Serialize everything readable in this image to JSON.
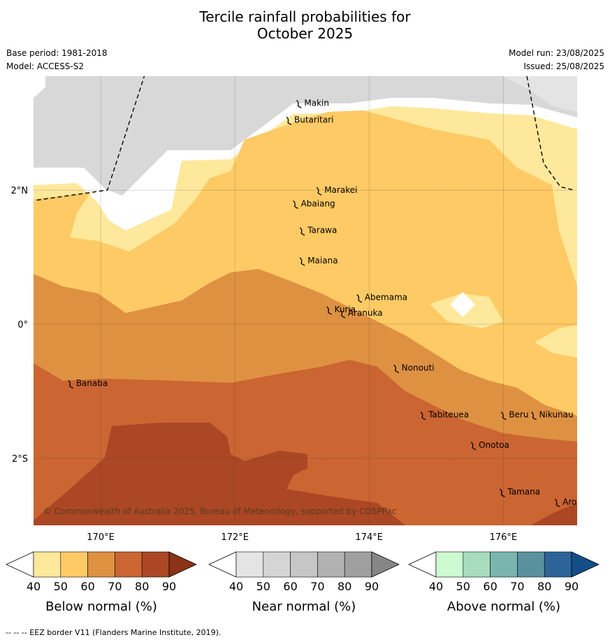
{
  "title": {
    "line1": "Tercile rainfall probabilities for",
    "line2": "October 2025"
  },
  "meta": {
    "base_period": "Base period: 1981-2018",
    "model": "Model: ACCESS-S2",
    "model_run": "Model run: 23/08/2025",
    "issued": "Issued: 25/08/2025"
  },
  "map": {
    "extent": {
      "lon_min": 169.0,
      "lon_max": 177.1,
      "lat_min": -3.0,
      "lat_max": 3.7
    },
    "lon_ticks": [
      {
        "value": 170,
        "label": "170°E"
      },
      {
        "value": 172,
        "label": "172°E"
      },
      {
        "value": 174,
        "label": "174°E"
      },
      {
        "value": 176,
        "label": "176°E"
      }
    ],
    "lat_ticks": [
      {
        "value": 2,
        "label": "2°N"
      },
      {
        "value": 0,
        "label": "0°"
      },
      {
        "value": -2,
        "label": "2°S"
      }
    ],
    "islands": [
      {
        "name": "Makin",
        "lon": 172.95,
        "lat": 3.3
      },
      {
        "name": "Butaritari",
        "lon": 172.8,
        "lat": 3.05
      },
      {
        "name": "Marakei",
        "lon": 173.25,
        "lat": 2.0
      },
      {
        "name": "Abaiang",
        "lon": 172.9,
        "lat": 1.8
      },
      {
        "name": "Tarawa",
        "lon": 173.0,
        "lat": 1.4
      },
      {
        "name": "Maiana",
        "lon": 173.0,
        "lat": 0.95
      },
      {
        "name": "Abemama",
        "lon": 173.85,
        "lat": 0.4
      },
      {
        "name": "Kuria",
        "lon": 173.4,
        "lat": 0.22
      },
      {
        "name": "Aranuka",
        "lon": 173.6,
        "lat": 0.17
      },
      {
        "name": "Nonouti",
        "lon": 174.4,
        "lat": -0.65
      },
      {
        "name": "Banaba",
        "lon": 169.55,
        "lat": -0.88
      },
      {
        "name": "Tabiteuea",
        "lon": 174.8,
        "lat": -1.35
      },
      {
        "name": "Beru",
        "lon": 176.0,
        "lat": -1.35
      },
      {
        "name": "Nikunau",
        "lon": 176.45,
        "lat": -1.35
      },
      {
        "name": "Onotoa",
        "lon": 175.55,
        "lat": -1.8
      },
      {
        "name": "Tamana",
        "lon": 175.98,
        "lat": -2.5
      },
      {
        "name": "Arorae",
        "lon": 176.8,
        "lat": -2.65
      }
    ],
    "eez_lines": [
      [
        [
          169.05,
          1.85
        ],
        [
          170.1,
          2.0
        ],
        [
          170.65,
          3.7
        ]
      ],
      [
        [
          176.35,
          3.7
        ],
        [
          176.6,
          2.4
        ],
        [
          176.85,
          2.05
        ],
        [
          177.05,
          2.0
        ]
      ]
    ],
    "copyright": "© Commonwealth of Australia 2025, Bureau of Meteorology, supported by COSPPac"
  },
  "colorbars": [
    {
      "title": "Below normal (%)",
      "ticks": [
        "40",
        "50",
        "60",
        "70",
        "80",
        "90"
      ],
      "colors": [
        "#fee89b",
        "#fdca65",
        "#df9142",
        "#cb6532",
        "#ab4724",
        "#8a3317"
      ]
    },
    {
      "title": "Near normal (%)",
      "ticks": [
        "40",
        "50",
        "60",
        "70",
        "80",
        "90"
      ],
      "colors": [
        "#e4e4e4",
        "#d5d5d5",
        "#c6c6c6",
        "#b2b2b2",
        "#a0a0a0",
        "#868686"
      ]
    },
    {
      "title": "Above normal (%)",
      "ticks": [
        "40",
        "50",
        "60",
        "70",
        "80",
        "90"
      ],
      "colors": [
        "#ccfbd1",
        "#a7dcbd",
        "#7bb5af",
        "#5a919f",
        "#2d6497",
        "#134e86"
      ]
    }
  ],
  "footer": "--  --  -- EEZ border V11 (Flanders Marine Institute, 2019)."
}
